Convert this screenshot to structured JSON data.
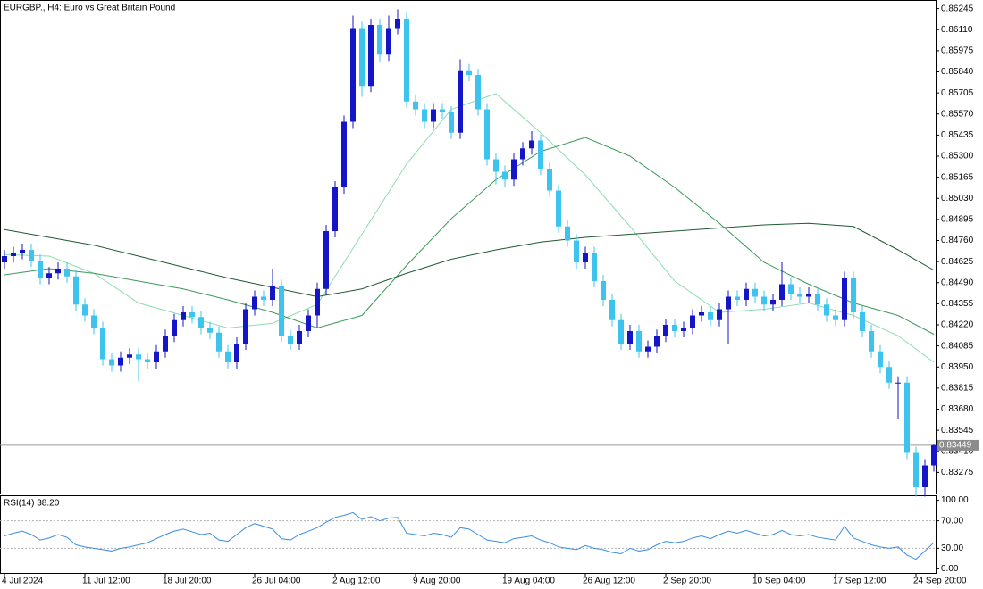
{
  "chart_data": {
    "type": "candlestick",
    "title": "EURGBP., H4:  Euro vs Great Britain Pound",
    "colors": {
      "up": "#1515c8",
      "down": "#3cc4ee"
    },
    "open": [
      0.8462,
      0.8466,
      0.8468,
      0.847,
      0.8463,
      0.8452,
      0.8455,
      0.8458,
      0.8453,
      0.8435,
      0.8428,
      0.842,
      0.84,
      0.8396,
      0.8401,
      0.8403,
      0.84,
      0.8398,
      0.8405,
      0.8415,
      0.8425,
      0.843,
      0.8427,
      0.842,
      0.8417,
      0.8405,
      0.8398,
      0.841,
      0.8432,
      0.844,
      0.8438,
      0.8447,
      0.8415,
      0.841,
      0.8418,
      0.8428,
      0.8445,
      0.8482,
      0.851,
      0.8552,
      0.8612,
      0.8575,
      0.8614,
      0.8595,
      0.8612,
      0.8618,
      0.8565,
      0.856,
      0.8552,
      0.856,
      0.8558,
      0.8545,
      0.8585,
      0.8582,
      0.856,
      0.8528,
      0.852,
      0.8515,
      0.8528,
      0.8535,
      0.854,
      0.8522,
      0.8508,
      0.8485,
      0.8476,
      0.8462,
      0.8468,
      0.845,
      0.8438,
      0.8425,
      0.841,
      0.8418,
      0.8405,
      0.8408,
      0.8415,
      0.8422,
      0.8418,
      0.842,
      0.8428,
      0.843,
      0.8425,
      0.8432,
      0.844,
      0.8438,
      0.8445,
      0.844,
      0.8435,
      0.8438,
      0.8448,
      0.8442,
      0.844,
      0.8442,
      0.8435,
      0.8428,
      0.8425,
      0.8452,
      0.843,
      0.8418,
      0.8405,
      0.8395,
      0.8385,
      0.8385,
      0.834,
      0.8318,
      0.8332
    ],
    "high": [
      0.847,
      0.8472,
      0.8474,
      0.8474,
      0.8467,
      0.8459,
      0.8462,
      0.8462,
      0.8457,
      0.8439,
      0.8432,
      0.8424,
      0.8404,
      0.8405,
      0.8407,
      0.8407,
      0.8404,
      0.8409,
      0.8419,
      0.8429,
      0.8434,
      0.8434,
      0.8431,
      0.8424,
      0.8421,
      0.8409,
      0.8414,
      0.8436,
      0.8444,
      0.8444,
      0.8458,
      0.8451,
      0.8419,
      0.8422,
      0.8432,
      0.8449,
      0.8486,
      0.8514,
      0.8556,
      0.862,
      0.8616,
      0.8618,
      0.8618,
      0.862,
      0.8624,
      0.8622,
      0.8569,
      0.8564,
      0.8564,
      0.8564,
      0.8562,
      0.8592,
      0.8589,
      0.8586,
      0.8564,
      0.8532,
      0.8524,
      0.8532,
      0.8539,
      0.8546,
      0.8544,
      0.8526,
      0.8512,
      0.8489,
      0.848,
      0.8472,
      0.8472,
      0.8454,
      0.8442,
      0.8429,
      0.8422,
      0.8422,
      0.8412,
      0.8419,
      0.8426,
      0.8426,
      0.8424,
      0.8432,
      0.8434,
      0.8434,
      0.8436,
      0.8444,
      0.8444,
      0.8449,
      0.8449,
      0.8444,
      0.8442,
      0.8462,
      0.8452,
      0.8446,
      0.8446,
      0.8446,
      0.8439,
      0.8432,
      0.8456,
      0.8456,
      0.8434,
      0.8422,
      0.8409,
      0.8399,
      0.8389,
      0.8389,
      0.8344,
      0.8336,
      0.8346
    ],
    "low": [
      0.8458,
      0.8462,
      0.8464,
      0.8459,
      0.8448,
      0.8448,
      0.8451,
      0.8449,
      0.8431,
      0.8424,
      0.8416,
      0.8396,
      0.8392,
      0.8392,
      0.8397,
      0.8386,
      0.8394,
      0.8394,
      0.8401,
      0.8411,
      0.8421,
      0.8423,
      0.8416,
      0.8413,
      0.8401,
      0.8394,
      0.8394,
      0.8406,
      0.8428,
      0.8434,
      0.8434,
      0.8411,
      0.8406,
      0.8406,
      0.8414,
      0.842,
      0.8441,
      0.8478,
      0.8506,
      0.8548,
      0.8568,
      0.8571,
      0.859,
      0.8591,
      0.8608,
      0.8561,
      0.8556,
      0.8548,
      0.8548,
      0.8554,
      0.8541,
      0.8541,
      0.8578,
      0.8556,
      0.8524,
      0.8512,
      0.851,
      0.8511,
      0.8524,
      0.8531,
      0.8518,
      0.8504,
      0.8481,
      0.8472,
      0.8458,
      0.8458,
      0.8446,
      0.8434,
      0.8421,
      0.8406,
      0.8406,
      0.8401,
      0.8401,
      0.8404,
      0.8411,
      0.8414,
      0.8414,
      0.8416,
      0.8424,
      0.8421,
      0.8421,
      0.841,
      0.8434,
      0.8434,
      0.8436,
      0.8431,
      0.8431,
      0.8434,
      0.8438,
      0.8436,
      0.8436,
      0.8431,
      0.8424,
      0.8421,
      0.8421,
      0.8426,
      0.8414,
      0.8401,
      0.8391,
      0.8381,
      0.8362,
      0.8336,
      0.8312,
      0.8312,
      0.8328
    ],
    "close": [
      0.8466,
      0.8468,
      0.847,
      0.8463,
      0.8452,
      0.8455,
      0.8458,
      0.8453,
      0.8435,
      0.8428,
      0.842,
      0.84,
      0.8396,
      0.8401,
      0.8403,
      0.84,
      0.8398,
      0.8405,
      0.8415,
      0.8425,
      0.843,
      0.8427,
      0.842,
      0.8417,
      0.8405,
      0.8398,
      0.841,
      0.8432,
      0.844,
      0.8438,
      0.8447,
      0.8415,
      0.841,
      0.8418,
      0.8428,
      0.8445,
      0.8482,
      0.851,
      0.8552,
      0.8612,
      0.8575,
      0.8614,
      0.8595,
      0.8612,
      0.8618,
      0.8565,
      0.856,
      0.8552,
      0.856,
      0.8558,
      0.8545,
      0.8585,
      0.8582,
      0.856,
      0.8528,
      0.852,
      0.8515,
      0.8528,
      0.8535,
      0.854,
      0.8522,
      0.8508,
      0.8485,
      0.8476,
      0.8462,
      0.8468,
      0.845,
      0.8438,
      0.8425,
      0.841,
      0.8418,
      0.8405,
      0.8408,
      0.8415,
      0.8422,
      0.8418,
      0.842,
      0.8428,
      0.843,
      0.8425,
      0.8432,
      0.844,
      0.8438,
      0.8445,
      0.844,
      0.8435,
      0.8438,
      0.8448,
      0.8442,
      0.844,
      0.8442,
      0.8435,
      0.8428,
      0.8425,
      0.8452,
      0.843,
      0.8418,
      0.8405,
      0.8395,
      0.8385,
      0.8385,
      0.834,
      0.8318,
      0.8332,
      0.83449
    ],
    "last_price": 0.83449,
    "ylim": [
      0.8314,
      0.863
    ],
    "yticks": [
      0.86245,
      {
        "value": 0.8611,
        "label": "0.86110"
      },
      0.85975,
      {
        "value": 0.8584,
        "label": "0.85840"
      },
      0.85705,
      {
        "value": 0.8557,
        "label": "0.85570"
      },
      0.85435,
      {
        "value": 0.853,
        "label": "0.85300"
      },
      0.85165,
      {
        "value": 0.8503,
        "label": "0.85030"
      },
      0.84895,
      {
        "value": 0.8476,
        "label": "0.84760"
      },
      0.84625,
      {
        "value": 0.8449,
        "label": "0.84490"
      },
      0.84355,
      {
        "value": 0.8422,
        "label": "0.84220"
      },
      0.84085,
      {
        "value": 0.8395,
        "label": "0.83950"
      },
      0.83815,
      {
        "value": 0.8368,
        "label": "0.83680"
      },
      0.83545,
      {
        "value": 0.8341,
        "label": "0.83410"
      },
      0.83275
    ],
    "xticks": [
      {
        "value": 0,
        "label": "4 Jul 2024"
      },
      {
        "value": 9,
        "label": "11 Jul 12:00"
      },
      {
        "value": 18,
        "label": "18 Jul 20:00"
      },
      {
        "value": 28,
        "label": "26 Jul 04:00"
      },
      {
        "value": 37,
        "label": "2 Aug 12:00"
      },
      {
        "value": 46,
        "label": "9 Aug 20:00"
      },
      {
        "value": 56,
        "label": "19 Aug 04:00"
      },
      {
        "value": 65,
        "label": "26 Aug 12:00"
      },
      {
        "value": 74,
        "label": "2 Sep 20:00"
      },
      {
        "value": 84,
        "label": "10 Sep 04:00"
      },
      {
        "value": 93,
        "label": "17 Sep 12:00"
      },
      {
        "value": 102,
        "label": "24 Sep 20:00"
      }
    ],
    "moving_averages": [
      {
        "color": "#8fdcb0",
        "index": [
          0,
          5,
          10,
          15,
          20,
          25,
          30,
          35,
          40,
          45,
          50,
          55,
          60,
          65,
          70,
          75,
          80,
          85,
          90,
          95,
          100,
          104
        ],
        "values": [
          0.8467,
          0.8466,
          0.8455,
          0.8436,
          0.8428,
          0.842,
          0.8423,
          0.8435,
          0.848,
          0.8525,
          0.856,
          0.857,
          0.8545,
          0.8518,
          0.8485,
          0.845,
          0.843,
          0.8432,
          0.8436,
          0.8428,
          0.8415,
          0.8398
        ]
      },
      {
        "color": "#3a9a5a",
        "index": [
          0,
          5,
          10,
          15,
          20,
          25,
          30,
          35,
          40,
          45,
          50,
          55,
          60,
          65,
          70,
          75,
          80,
          85,
          90,
          95,
          100,
          104
        ],
        "values": [
          0.8454,
          0.8458,
          0.8455,
          0.845,
          0.8445,
          0.8438,
          0.843,
          0.842,
          0.8428,
          0.846,
          0.849,
          0.8515,
          0.8533,
          0.8542,
          0.853,
          0.851,
          0.8487,
          0.8462,
          0.8448,
          0.8436,
          0.8428,
          0.8416
        ]
      },
      {
        "color": "#1f5a35",
        "index": [
          0,
          5,
          10,
          15,
          20,
          25,
          30,
          35,
          40,
          45,
          50,
          55,
          60,
          65,
          70,
          75,
          80,
          85,
          90,
          95,
          100,
          104
        ],
        "values": [
          0.8483,
          0.8478,
          0.8473,
          0.8466,
          0.8459,
          0.8452,
          0.8446,
          0.844,
          0.8445,
          0.8455,
          0.8464,
          0.847,
          0.8475,
          0.8478,
          0.848,
          0.8482,
          0.8484,
          0.8486,
          0.8487,
          0.8485,
          0.847,
          0.8457
        ]
      }
    ],
    "indicator": {
      "type": "line",
      "title": "RSI(14) 38.20",
      "color": "#3a8ee6",
      "ylim": [
        -6,
        106
      ],
      "yticks": [
        {
          "value": 100,
          "label": "100.00"
        },
        {
          "value": 70,
          "label": "70.00"
        },
        {
          "value": 30,
          "label": "30.00"
        },
        {
          "value": 0,
          "label": "0.00"
        }
      ],
      "levels": [
        70,
        30
      ],
      "values": [
        48,
        52,
        55,
        50,
        42,
        45,
        50,
        46,
        35,
        32,
        30,
        28,
        26,
        30,
        32,
        35,
        38,
        44,
        50,
        55,
        58,
        54,
        50,
        52,
        42,
        40,
        50,
        60,
        66,
        62,
        58,
        44,
        42,
        50,
        55,
        60,
        68,
        75,
        78,
        82,
        72,
        76,
        70,
        74,
        75,
        52,
        50,
        48,
        52,
        50,
        46,
        60,
        58,
        50,
        42,
        40,
        38,
        44,
        46,
        48,
        42,
        38,
        32,
        30,
        28,
        34,
        30,
        28,
        24,
        22,
        30,
        26,
        28,
        35,
        40,
        38,
        40,
        45,
        48,
        44,
        50,
        55,
        52,
        56,
        52,
        48,
        50,
        56,
        50,
        48,
        50,
        46,
        44,
        42,
        62,
        45,
        40,
        35,
        32,
        30,
        32,
        20,
        14,
        26,
        38.2
      ]
    }
  }
}
